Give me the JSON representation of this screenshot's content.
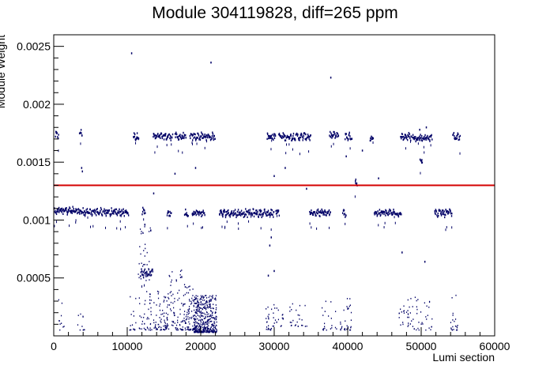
{
  "chart_data": {
    "type": "scatter",
    "title": "Module 304119828,     diff=265 ppm",
    "xlabel": "Lumi section",
    "ylabel": "Module Weight",
    "xlim": [
      0,
      60000
    ],
    "ylim": [
      0,
      0.0026
    ],
    "x_ticks": [
      0,
      10000,
      20000,
      30000,
      40000,
      50000,
      60000
    ],
    "x_tick_labels": [
      "0",
      "10000",
      "20000",
      "30000",
      "40000",
      "50000",
      "60000"
    ],
    "y_ticks": [
      0.0005,
      0.001,
      0.0015,
      0.002,
      0.0025
    ],
    "y_tick_labels": [
      "0.0005",
      "0.001",
      "0.0015",
      "0.002",
      "0.0025"
    ],
    "reference_line": {
      "y": 0.0013,
      "color": "#d40000"
    },
    "marker_color": "#000066",
    "grid": false,
    "upper_band_segments": [
      [
        200,
        700,
        0.00173
      ],
      [
        3500,
        3900,
        0.00175
      ],
      [
        10800,
        11600,
        0.00172
      ],
      [
        13500,
        16200,
        0.00172
      ],
      [
        16500,
        18000,
        0.00172
      ],
      [
        18500,
        22000,
        0.00172
      ],
      [
        29000,
        30200,
        0.00172
      ],
      [
        30600,
        32000,
        0.00172
      ],
      [
        32000,
        35000,
        0.00172
      ],
      [
        37500,
        38800,
        0.00173
      ],
      [
        39600,
        40600,
        0.00172
      ],
      [
        43000,
        43500,
        0.0017
      ],
      [
        47200,
        48700,
        0.00172
      ],
      [
        48800,
        51500,
        0.00171
      ],
      [
        54300,
        55300,
        0.00172
      ]
    ],
    "lower_band_segments": [
      [
        0,
        3300,
        0.00108
      ],
      [
        3300,
        10200,
        0.00107
      ],
      [
        12000,
        12500,
        0.00107
      ],
      [
        15400,
        16000,
        0.00106
      ],
      [
        17800,
        18300,
        0.00106
      ],
      [
        18800,
        20600,
        0.00106
      ],
      [
        22500,
        25000,
        0.00106
      ],
      [
        25000,
        28500,
        0.00106
      ],
      [
        28500,
        30000,
        0.00106
      ],
      [
        30200,
        30700,
        0.00107
      ],
      [
        34800,
        37700,
        0.00106
      ],
      [
        39300,
        39800,
        0.00106
      ],
      [
        43600,
        47300,
        0.00106
      ],
      [
        51800,
        54200,
        0.00106
      ]
    ],
    "extra_segments": [
      [
        11800,
        13500,
        0.00054
      ],
      [
        41000,
        41300,
        0.00132
      ],
      [
        49800,
        50200,
        0.0015
      ]
    ],
    "isolated_points": [
      [
        10600,
        0.00244
      ],
      [
        21400,
        0.00236
      ],
      [
        37700,
        0.00223
      ],
      [
        3800,
        0.00145
      ],
      [
        3900,
        0.00142
      ],
      [
        16500,
        0.0014
      ],
      [
        19300,
        0.00145
      ],
      [
        30000,
        0.00138
      ],
      [
        31500,
        0.00145
      ],
      [
        39800,
        0.00155
      ],
      [
        44200,
        0.00136
      ],
      [
        34400,
        0.00127
      ],
      [
        42000,
        0.0016
      ],
      [
        49800,
        0.00178
      ],
      [
        50700,
        0.0018
      ],
      [
        13600,
        0.00123
      ],
      [
        29600,
        0.00085
      ],
      [
        29400,
        0.00078
      ],
      [
        29200,
        0.00052
      ],
      [
        30000,
        0.00056
      ],
      [
        12400,
        0.00096
      ],
      [
        13200,
        0.00091
      ],
      [
        50500,
        0.00064
      ],
      [
        47400,
        0.00072
      ],
      [
        23000,
        0.00103
      ]
    ],
    "low_clusters": [
      [
        500,
        1500,
        5e-05,
        0.00035,
        10
      ],
      [
        3200,
        4200,
        5e-05,
        0.00025,
        10
      ],
      [
        10300,
        11200,
        5e-05,
        0.00035,
        15
      ],
      [
        11500,
        13200,
        5e-05,
        0.00095,
        60
      ],
      [
        13000,
        15500,
        5e-05,
        0.0004,
        80
      ],
      [
        15500,
        17500,
        5e-05,
        0.0006,
        70
      ],
      [
        17500,
        19000,
        5e-05,
        0.00045,
        80
      ],
      [
        19000,
        21000,
        3e-05,
        0.00035,
        300
      ],
      [
        21000,
        22200,
        3e-05,
        0.00035,
        130
      ],
      [
        28800,
        30000,
        5e-05,
        0.0003,
        25
      ],
      [
        30000,
        31500,
        8e-05,
        0.0003,
        15
      ],
      [
        32000,
        34500,
        8e-05,
        0.0003,
        25
      ],
      [
        36500,
        38500,
        5e-05,
        0.0003,
        20
      ],
      [
        39000,
        40500,
        5e-05,
        0.00035,
        30
      ],
      [
        47000,
        49000,
        8e-05,
        0.00035,
        30
      ],
      [
        49000,
        51500,
        5e-05,
        0.00035,
        30
      ],
      [
        54000,
        55000,
        5e-05,
        0.00035,
        20
      ]
    ]
  }
}
